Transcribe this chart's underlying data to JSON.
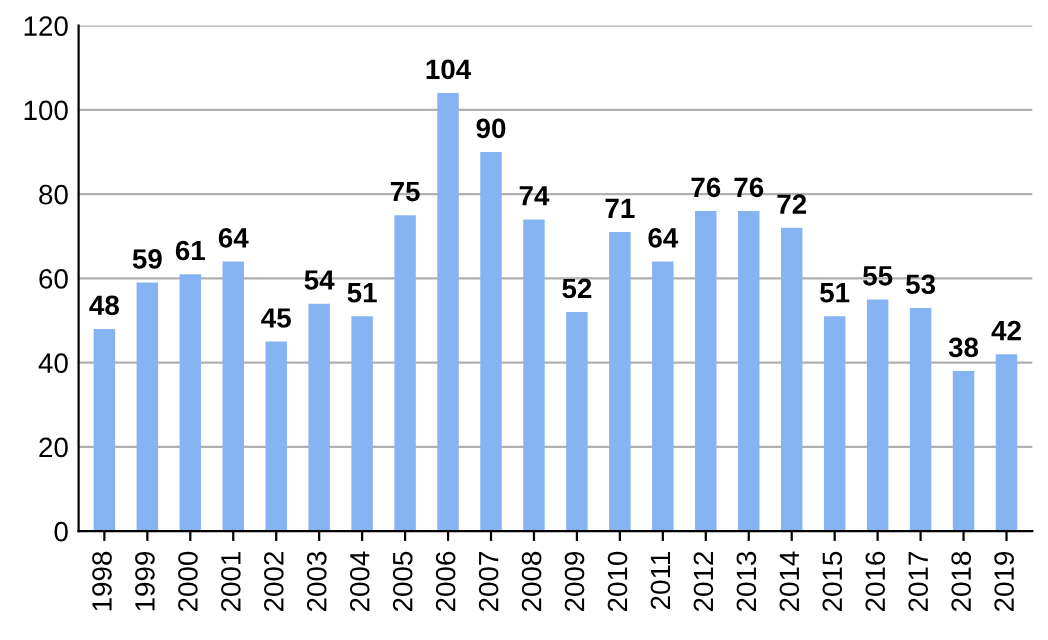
{
  "chart_data": {
    "type": "bar",
    "categories": [
      "1998",
      "1999",
      "2000",
      "2001",
      "2002",
      "2003",
      "2004",
      "2005",
      "2006",
      "2007",
      "2008",
      "2009",
      "2010",
      "2011",
      "2012",
      "2013",
      "2014",
      "2015",
      "2016",
      "2017",
      "2018",
      "2019"
    ],
    "values": [
      48,
      59,
      61,
      64,
      45,
      54,
      51,
      75,
      104,
      90,
      74,
      52,
      71,
      64,
      76,
      76,
      72,
      51,
      55,
      53,
      38,
      42
    ],
    "color": "#86b4f2",
    "ylim": [
      0,
      120
    ],
    "yticks": [
      0,
      20,
      40,
      60,
      80,
      100,
      120
    ],
    "grid": "y",
    "data_labels": true
  }
}
